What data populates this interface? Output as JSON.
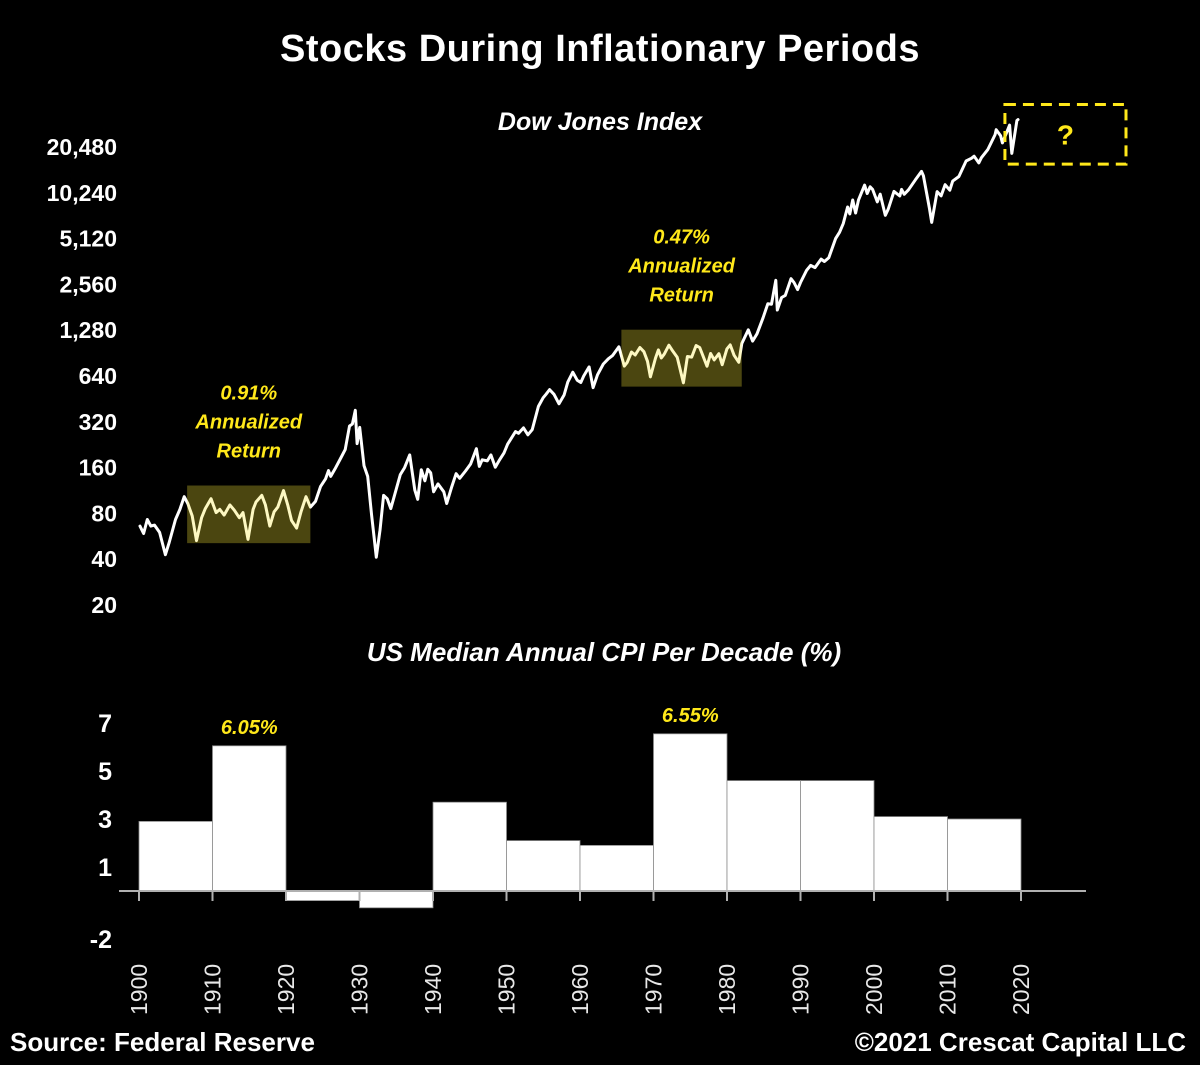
{
  "page": {
    "title": "Stocks During Inflationary Periods",
    "footer_left": "Source: Federal Reserve",
    "footer_right": "©2021 Crescat Capital LLC"
  },
  "colors": {
    "background": "#000000",
    "line": "#ffffff",
    "bars": "#ffffff",
    "accent_yellow": "#ffe81a",
    "highlight_fill": "rgba(247,233,53,0.30)",
    "axis": "#b0b0b0"
  },
  "chart_data": [
    {
      "type": "line",
      "title": "Dow Jones Index",
      "y_scale": "log2",
      "y_tick_labels": [
        "20,480",
        "10,240",
        "5,120",
        "2,560",
        "1,280",
        "640",
        "320",
        "160",
        "80",
        "40",
        "20"
      ],
      "x_range": [
        1900,
        2021
      ],
      "series": [
        {
          "name": "Dow Jones Index",
          "points": [
            [
              1900,
              66
            ],
            [
              1900.5,
              59
            ],
            [
              1901,
              73
            ],
            [
              1901.5,
              66
            ],
            [
              1902,
              67
            ],
            [
              1902.7,
              60
            ],
            [
              1903.5,
              42.8
            ],
            [
              1904,
              51
            ],
            [
              1904.9,
              73
            ],
            [
              1905.5,
              85
            ],
            [
              1906.1,
              103
            ],
            [
              1906.6,
              93
            ],
            [
              1907.2,
              77
            ],
            [
              1907.8,
              53
            ],
            [
              1908.5,
              75
            ],
            [
              1909,
              86
            ],
            [
              1909.8,
              100
            ],
            [
              1910.5,
              81
            ],
            [
              1911,
              85
            ],
            [
              1911.6,
              78
            ],
            [
              1912.4,
              91
            ],
            [
              1913,
              84
            ],
            [
              1913.7,
              75
            ],
            [
              1914.2,
              81
            ],
            [
              1914.9,
              54
            ],
            [
              1915.6,
              85
            ],
            [
              1916,
              95
            ],
            [
              1916.8,
              105
            ],
            [
              1917.3,
              91
            ],
            [
              1917.9,
              66
            ],
            [
              1918.5,
              82
            ],
            [
              1919,
              88
            ],
            [
              1919.8,
              113
            ],
            [
              1920.4,
              90
            ],
            [
              1920.9,
              72
            ],
            [
              1921.6,
              64
            ],
            [
              1922.2,
              82
            ],
            [
              1922.9,
              103
            ],
            [
              1923.5,
              88
            ],
            [
              1924.2,
              96
            ],
            [
              1924.9,
              120
            ],
            [
              1925.6,
              135
            ],
            [
              1926,
              153
            ],
            [
              1926.3,
              140
            ],
            [
              1926.9,
              157
            ],
            [
              1927.7,
              185
            ],
            [
              1928.3,
              210
            ],
            [
              1928.9,
              300
            ],
            [
              1929.3,
              310
            ],
            [
              1929.7,
              381
            ],
            [
              1929.95,
              230
            ],
            [
              1930.3,
              294
            ],
            [
              1930.9,
              165
            ],
            [
              1931.4,
              140
            ],
            [
              1931.95,
              78
            ],
            [
              1932.3,
              55
            ],
            [
              1932.6,
              41.2
            ],
            [
              1933.1,
              62
            ],
            [
              1933.6,
              105
            ],
            [
              1934.1,
              100
            ],
            [
              1934.6,
              86
            ],
            [
              1935.1,
              105
            ],
            [
              1935.9,
              144
            ],
            [
              1936.5,
              160
            ],
            [
              1937.2,
              194
            ],
            [
              1937.9,
              114
            ],
            [
              1938.3,
              99
            ],
            [
              1938.8,
              155
            ],
            [
              1939.3,
              131
            ],
            [
              1939.7,
              156
            ],
            [
              1940.1,
              148
            ],
            [
              1940.5,
              111
            ],
            [
              1941.1,
              125
            ],
            [
              1941.9,
              111
            ],
            [
              1942.3,
              93
            ],
            [
              1943,
              120
            ],
            [
              1943.6,
              146
            ],
            [
              1944.1,
              136
            ],
            [
              1944.9,
              152
            ],
            [
              1945.6,
              169
            ],
            [
              1946.4,
              213
            ],
            [
              1946.8,
              163
            ],
            [
              1947.2,
              180
            ],
            [
              1947.9,
              177
            ],
            [
              1948.4,
              194
            ],
            [
              1949,
              161
            ],
            [
              1949.6,
              180
            ],
            [
              1950.2,
              200
            ],
            [
              1950.7,
              228
            ],
            [
              1951.2,
              249
            ],
            [
              1951.8,
              276
            ],
            [
              1952.2,
              269
            ],
            [
              1952.9,
              292
            ],
            [
              1953.5,
              263
            ],
            [
              1954.1,
              284
            ],
            [
              1954.95,
              404
            ],
            [
              1955.6,
              460
            ],
            [
              1956,
              485
            ],
            [
              1956.5,
              521
            ],
            [
              1957.1,
              485
            ],
            [
              1957.8,
              420
            ],
            [
              1958.5,
              480
            ],
            [
              1959,
              584
            ],
            [
              1959.7,
              678
            ],
            [
              1960.3,
              601
            ],
            [
              1960.8,
              580
            ],
            [
              1961.2,
              640
            ],
            [
              1961.95,
              735
            ],
            [
              1962.5,
              536
            ],
            [
              1963.1,
              652
            ],
            [
              1963.9,
              767
            ],
            [
              1964.6,
              830
            ],
            [
              1965.2,
              874
            ],
            [
              1966.05,
              995
            ],
            [
              1966.8,
              744
            ],
            [
              1967.2,
              786
            ],
            [
              1967.8,
              920
            ],
            [
              1968.3,
              880
            ],
            [
              1968.95,
              985
            ],
            [
              1969.5,
              925
            ],
            [
              1970,
              800
            ],
            [
              1970.4,
              631
            ],
            [
              1971.1,
              839
            ],
            [
              1971.5,
              950
            ],
            [
              1971.9,
              840
            ],
            [
              1972.3,
              890
            ],
            [
              1972.95,
              1020
            ],
            [
              1973.5,
              930
            ],
            [
              1974.1,
              851
            ],
            [
              1974.95,
              577
            ],
            [
              1975.5,
              860
            ],
            [
              1976.1,
              852
            ],
            [
              1976.7,
              1015
            ],
            [
              1977.2,
              985
            ],
            [
              1977.95,
              800
            ],
            [
              1978.2,
              742
            ],
            [
              1978.7,
              900
            ],
            [
              1979.2,
              817
            ],
            [
              1979.85,
              897
            ],
            [
              1980.3,
              759
            ],
            [
              1980.95,
              964
            ],
            [
              1981.4,
              1024
            ],
            [
              1981.95,
              875
            ],
            [
              1982.6,
              788
            ],
            [
              1983,
              1046
            ],
            [
              1983.9,
              1287
            ],
            [
              1984.5,
              1086
            ],
            [
              1985.1,
              1212
            ],
            [
              1985.95,
              1547
            ],
            [
              1986.6,
              1909
            ],
            [
              1987.1,
              1896
            ],
            [
              1987.7,
              2722
            ],
            [
              1987.9,
              1739
            ],
            [
              1988.5,
              2100
            ],
            [
              1989,
              2169
            ],
            [
              1989.8,
              2791
            ],
            [
              1990.2,
              2633
            ],
            [
              1990.7,
              2365
            ],
            [
              1991.1,
              2634
            ],
            [
              1991.95,
              3169
            ],
            [
              1992.5,
              3413
            ],
            [
              1993.1,
              3301
            ],
            [
              1993.95,
              3754
            ],
            [
              1994.4,
              3620
            ],
            [
              1995,
              3834
            ],
            [
              1995.95,
              5117
            ],
            [
              1996.5,
              5643
            ],
            [
              1997,
              6448
            ],
            [
              1997.6,
              8259
            ],
            [
              1997.9,
              7442
            ],
            [
              1998.3,
              9184
            ],
            [
              1998.7,
              7539
            ],
            [
              1999.1,
              9181
            ],
            [
              1999.95,
              11497
            ],
            [
              2000.3,
              10128
            ],
            [
              2000.7,
              11215
            ],
            [
              2001.05,
              10788
            ],
            [
              2001.7,
              8920
            ],
            [
              2002.1,
              10022
            ],
            [
              2002.8,
              7286
            ],
            [
              2003.2,
              7992
            ],
            [
              2004,
              10454
            ],
            [
              2004.8,
              9749
            ],
            [
              2005.05,
              10783
            ],
            [
              2005.4,
              10012
            ],
            [
              2006,
              10718
            ],
            [
              2006.95,
              12463
            ],
            [
              2007.8,
              14165
            ],
            [
              2008.05,
              13265
            ],
            [
              2008.9,
              8046
            ],
            [
              2009.2,
              6547
            ],
            [
              2009.95,
              10428
            ],
            [
              2010.5,
              9774
            ],
            [
              2011.05,
              11578
            ],
            [
              2011.7,
              10655
            ],
            [
              2012.1,
              12218
            ],
            [
              2012.95,
              13104
            ],
            [
              2013.95,
              16577
            ],
            [
              2014.7,
              17280
            ],
            [
              2015.05,
              17823
            ],
            [
              2015.7,
              16102
            ],
            [
              2016.05,
              17425
            ],
            [
              2016.95,
              19763
            ],
            [
              2017.95,
              24719
            ],
            [
              2018.1,
              26617
            ],
            [
              2018.7,
              24271
            ],
            [
              2018.95,
              21792
            ],
            [
              2019.95,
              28538
            ],
            [
              2020.25,
              18592
            ],
            [
              2020.95,
              30606
            ],
            [
              2021.1,
              31000
            ]
          ]
        }
      ],
      "highlights": [
        {
          "lines": [
            "0.91%",
            "Annualized",
            "Return"
          ],
          "start_year": 1906.5,
          "end_year": 1923.5,
          "top_value": 122,
          "bottom_value": 51
        },
        {
          "lines": [
            "0.47%",
            "Annualized",
            "Return"
          ],
          "start_year": 1966.4,
          "end_year": 1983.0,
          "top_value": 1290,
          "bottom_value": 545
        }
      ],
      "forecast_box": {
        "label": "?",
        "start_year": 2019.3,
        "end_year": 2036.0,
        "top_value": 39000,
        "bottom_value": 15800
      }
    },
    {
      "type": "bar",
      "title": "US Median Annual CPI Per Decade (%)",
      "y_ticks": [
        7,
        5,
        3,
        1,
        -2
      ],
      "ylim": [
        -2,
        7.5
      ],
      "x_tick_labels": [
        "1900",
        "1910",
        "1920",
        "1930",
        "1940",
        "1950",
        "1960",
        "1970",
        "1980",
        "1990",
        "2000",
        "2010",
        "2020"
      ],
      "categories": [
        "1900s",
        "1910s",
        "1920s",
        "1930s",
        "1940s",
        "1950s",
        "1960s",
        "1970s",
        "1980s",
        "1990s",
        "2000s",
        "2010s"
      ],
      "values": [
        2.9,
        6.05,
        -0.4,
        -0.7,
        3.7,
        2.1,
        1.9,
        6.55,
        4.6,
        4.6,
        3.1,
        3.0
      ],
      "bar_labels": [
        {
          "decade_index": 1,
          "text": "6.05%"
        },
        {
          "decade_index": 7,
          "text": "6.55%"
        }
      ]
    }
  ]
}
